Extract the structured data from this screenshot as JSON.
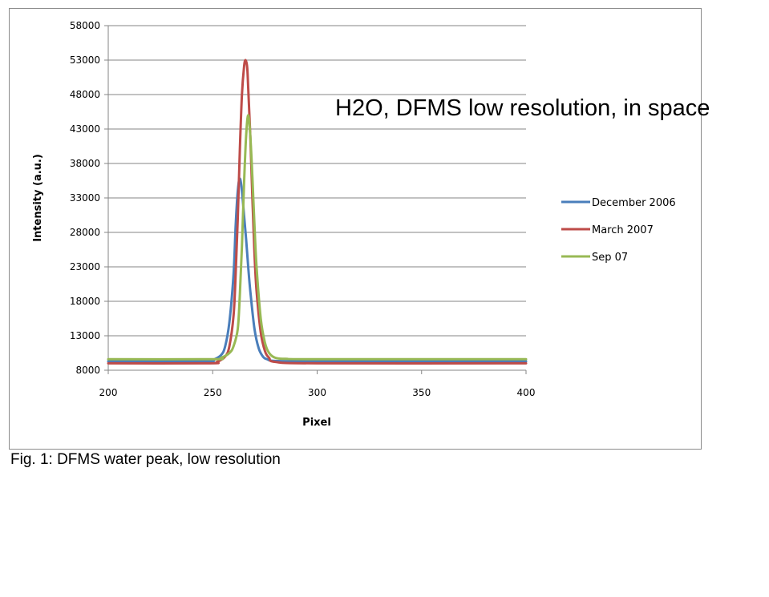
{
  "chart_data": {
    "type": "line",
    "title": "H2O, DFMS low resolution, in space",
    "xlabel": "Pixel",
    "ylabel": "Intensity (a.u.)",
    "xlim": [
      200,
      400
    ],
    "ylim": [
      8000,
      58000
    ],
    "x_ticks": [
      "200",
      "250",
      "300",
      "350",
      "400"
    ],
    "y_ticks": [
      "8000",
      "13000",
      "18000",
      "23000",
      "28000",
      "33000",
      "38000",
      "43000",
      "48000",
      "53000",
      "58000"
    ],
    "grid": "horizontal",
    "legend_position": "right",
    "series": [
      {
        "name": "December 2006",
        "color": "#4a7ebb",
        "points": [
          [
            200,
            9300
          ],
          [
            246,
            9300
          ],
          [
            250,
            9500
          ],
          [
            254,
            10200
          ],
          [
            256,
            11500
          ],
          [
            258,
            15000
          ],
          [
            260,
            22000
          ],
          [
            261,
            29000
          ],
          [
            262,
            34000
          ],
          [
            263,
            35800
          ],
          [
            264,
            34000
          ],
          [
            265,
            30500
          ],
          [
            266,
            27000
          ],
          [
            267,
            23000
          ],
          [
            268,
            19500
          ],
          [
            270,
            14000
          ],
          [
            272,
            11200
          ],
          [
            274,
            10000
          ],
          [
            276,
            9600
          ],
          [
            280,
            9350
          ],
          [
            300,
            9300
          ],
          [
            400,
            9300
          ]
        ]
      },
      {
        "name": "March 2007",
        "color": "#be4b48",
        "points": [
          [
            200,
            9000
          ],
          [
            248,
            9000
          ],
          [
            252,
            9200
          ],
          [
            256,
            10000
          ],
          [
            258,
            11500
          ],
          [
            260,
            16000
          ],
          [
            261,
            22000
          ],
          [
            262,
            30000
          ],
          [
            263,
            40000
          ],
          [
            264,
            48000
          ],
          [
            265,
            52000
          ],
          [
            265.7,
            53000
          ],
          [
            266.5,
            52000
          ],
          [
            267,
            49000
          ],
          [
            268,
            42000
          ],
          [
            269,
            33000
          ],
          [
            270,
            25000
          ],
          [
            271,
            19500
          ],
          [
            273,
            13500
          ],
          [
            275,
            10800
          ],
          [
            277,
            9800
          ],
          [
            280,
            9200
          ],
          [
            300,
            9000
          ],
          [
            400,
            9000
          ]
        ]
      },
      {
        "name": "Sep 07",
        "color": "#98b954",
        "points": [
          [
            200,
            9600
          ],
          [
            250,
            9600
          ],
          [
            254,
            9800
          ],
          [
            258,
            10500
          ],
          [
            260,
            11500
          ],
          [
            262,
            14000
          ],
          [
            263,
            19000
          ],
          [
            264,
            26000
          ],
          [
            265,
            35000
          ],
          [
            266,
            42000
          ],
          [
            267,
            45000
          ],
          [
            268,
            42000
          ],
          [
            269,
            36000
          ],
          [
            270,
            29000
          ],
          [
            271,
            23000
          ],
          [
            273,
            15500
          ],
          [
            275,
            12000
          ],
          [
            277,
            10500
          ],
          [
            280,
            9800
          ],
          [
            285,
            9650
          ],
          [
            300,
            9600
          ],
          [
            400,
            9600
          ]
        ]
      }
    ]
  },
  "caption": "Fig. 1: DFMS water peak, low resolution"
}
